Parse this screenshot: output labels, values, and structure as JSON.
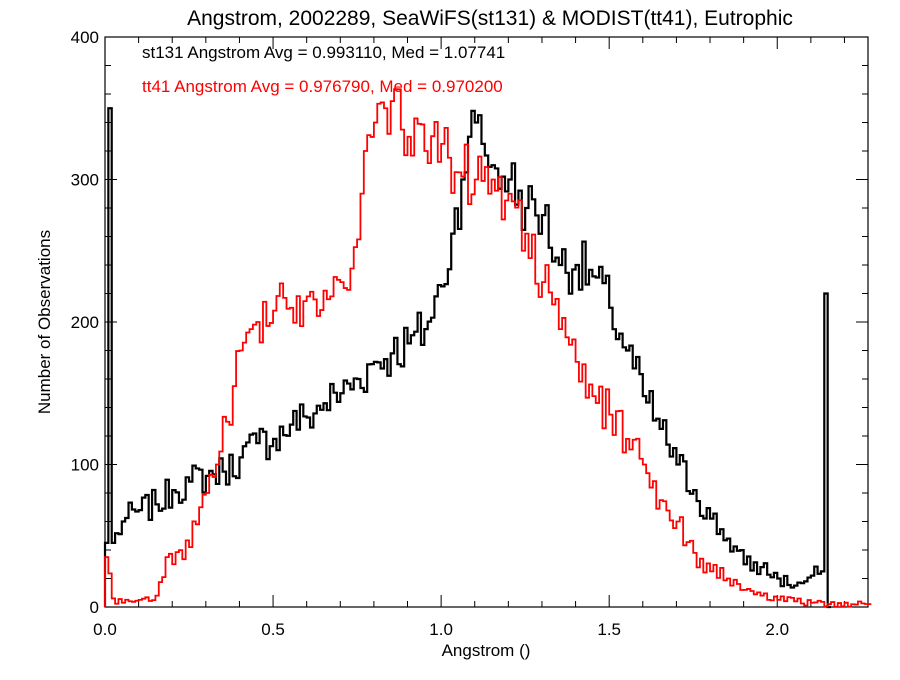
{
  "chart_data": {
    "type": "line",
    "title": "Angstrom, 2002289, SeaWiFS(st131) & MODIST(tt41), Eutrophic",
    "xlabel": "Angstrom ()",
    "ylabel": "Number of Observations",
    "xlim": [
      0.0,
      2.27
    ],
    "ylim": [
      0,
      400
    ],
    "x_ticks": [
      "0.0",
      "0.5",
      "1.0",
      "1.5",
      "2.0"
    ],
    "y_ticks": [
      "0",
      "100",
      "200",
      "300",
      "400"
    ],
    "grid": false,
    "legend_position": "top-left",
    "bin_width": 0.01,
    "series": [
      {
        "name": "st131 Angstrom Avg = 0.993110, Med = 1.07741",
        "color": "#000000",
        "points": [
          [
            0.0,
            45
          ],
          [
            0.01,
            350
          ],
          [
            0.02,
            45
          ],
          [
            0.05,
            60
          ],
          [
            0.1,
            68
          ],
          [
            0.15,
            72
          ],
          [
            0.2,
            82
          ],
          [
            0.25,
            88
          ],
          [
            0.3,
            92
          ],
          [
            0.35,
            95
          ],
          [
            0.4,
            105
          ],
          [
            0.45,
            115
          ],
          [
            0.5,
            118
          ],
          [
            0.55,
            128
          ],
          [
            0.6,
            133
          ],
          [
            0.65,
            143
          ],
          [
            0.7,
            150
          ],
          [
            0.75,
            160
          ],
          [
            0.8,
            172
          ],
          [
            0.85,
            178
          ],
          [
            0.9,
            185
          ],
          [
            0.95,
            195
          ],
          [
            1.0,
            225
          ],
          [
            1.03,
            262
          ],
          [
            1.06,
            300
          ],
          [
            1.08,
            330
          ],
          [
            1.1,
            340
          ],
          [
            1.12,
            325
          ],
          [
            1.15,
            310
          ],
          [
            1.18,
            302
          ],
          [
            1.2,
            300
          ],
          [
            1.25,
            280
          ],
          [
            1.3,
            275
          ],
          [
            1.35,
            240
          ],
          [
            1.4,
            240
          ],
          [
            1.45,
            232
          ],
          [
            1.5,
            210
          ],
          [
            1.55,
            180
          ],
          [
            1.6,
            148
          ],
          [
            1.65,
            125
          ],
          [
            1.7,
            100
          ],
          [
            1.75,
            82
          ],
          [
            1.8,
            62
          ],
          [
            1.85,
            48
          ],
          [
            1.9,
            30
          ],
          [
            1.95,
            28
          ],
          [
            2.0,
            20
          ],
          [
            2.05,
            15
          ],
          [
            2.08,
            18
          ],
          [
            2.1,
            22
          ],
          [
            2.13,
            25
          ],
          [
            2.14,
            220
          ],
          [
            2.15,
            0
          ]
        ]
      },
      {
        "name": "tt41 Angstrom Avg = 0.976790, Med = 0.970200",
        "color": "#ff0000",
        "points": [
          [
            0.0,
            35
          ],
          [
            0.02,
            6
          ],
          [
            0.05,
            3
          ],
          [
            0.1,
            5
          ],
          [
            0.15,
            8
          ],
          [
            0.18,
            35
          ],
          [
            0.2,
            30
          ],
          [
            0.25,
            42
          ],
          [
            0.28,
            70
          ],
          [
            0.3,
            80
          ],
          [
            0.33,
            100
          ],
          [
            0.36,
            130
          ],
          [
            0.38,
            155
          ],
          [
            0.4,
            180
          ],
          [
            0.43,
            195
          ],
          [
            0.45,
            200
          ],
          [
            0.5,
            208
          ],
          [
            0.55,
            210
          ],
          [
            0.6,
            218
          ],
          [
            0.65,
            222
          ],
          [
            0.7,
            228
          ],
          [
            0.75,
            258
          ],
          [
            0.77,
            320
          ],
          [
            0.8,
            340
          ],
          [
            0.83,
            350
          ],
          [
            0.85,
            355
          ],
          [
            0.88,
            335
          ],
          [
            0.9,
            330
          ],
          [
            0.95,
            320
          ],
          [
            1.0,
            325
          ],
          [
            1.05,
            305
          ],
          [
            1.1,
            300
          ],
          [
            1.15,
            300
          ],
          [
            1.2,
            290
          ],
          [
            1.25,
            262
          ],
          [
            1.3,
            228
          ],
          [
            1.35,
            195
          ],
          [
            1.4,
            172
          ],
          [
            1.45,
            148
          ],
          [
            1.5,
            135
          ],
          [
            1.55,
            118
          ],
          [
            1.6,
            100
          ],
          [
            1.65,
            75
          ],
          [
            1.7,
            60
          ],
          [
            1.75,
            38
          ],
          [
            1.8,
            25
          ],
          [
            1.85,
            20
          ],
          [
            1.9,
            12
          ],
          [
            1.95,
            8
          ],
          [
            2.0,
            5
          ],
          [
            2.05,
            4
          ],
          [
            2.1,
            3
          ],
          [
            2.15,
            2
          ],
          [
            2.27,
            2
          ]
        ]
      }
    ]
  }
}
